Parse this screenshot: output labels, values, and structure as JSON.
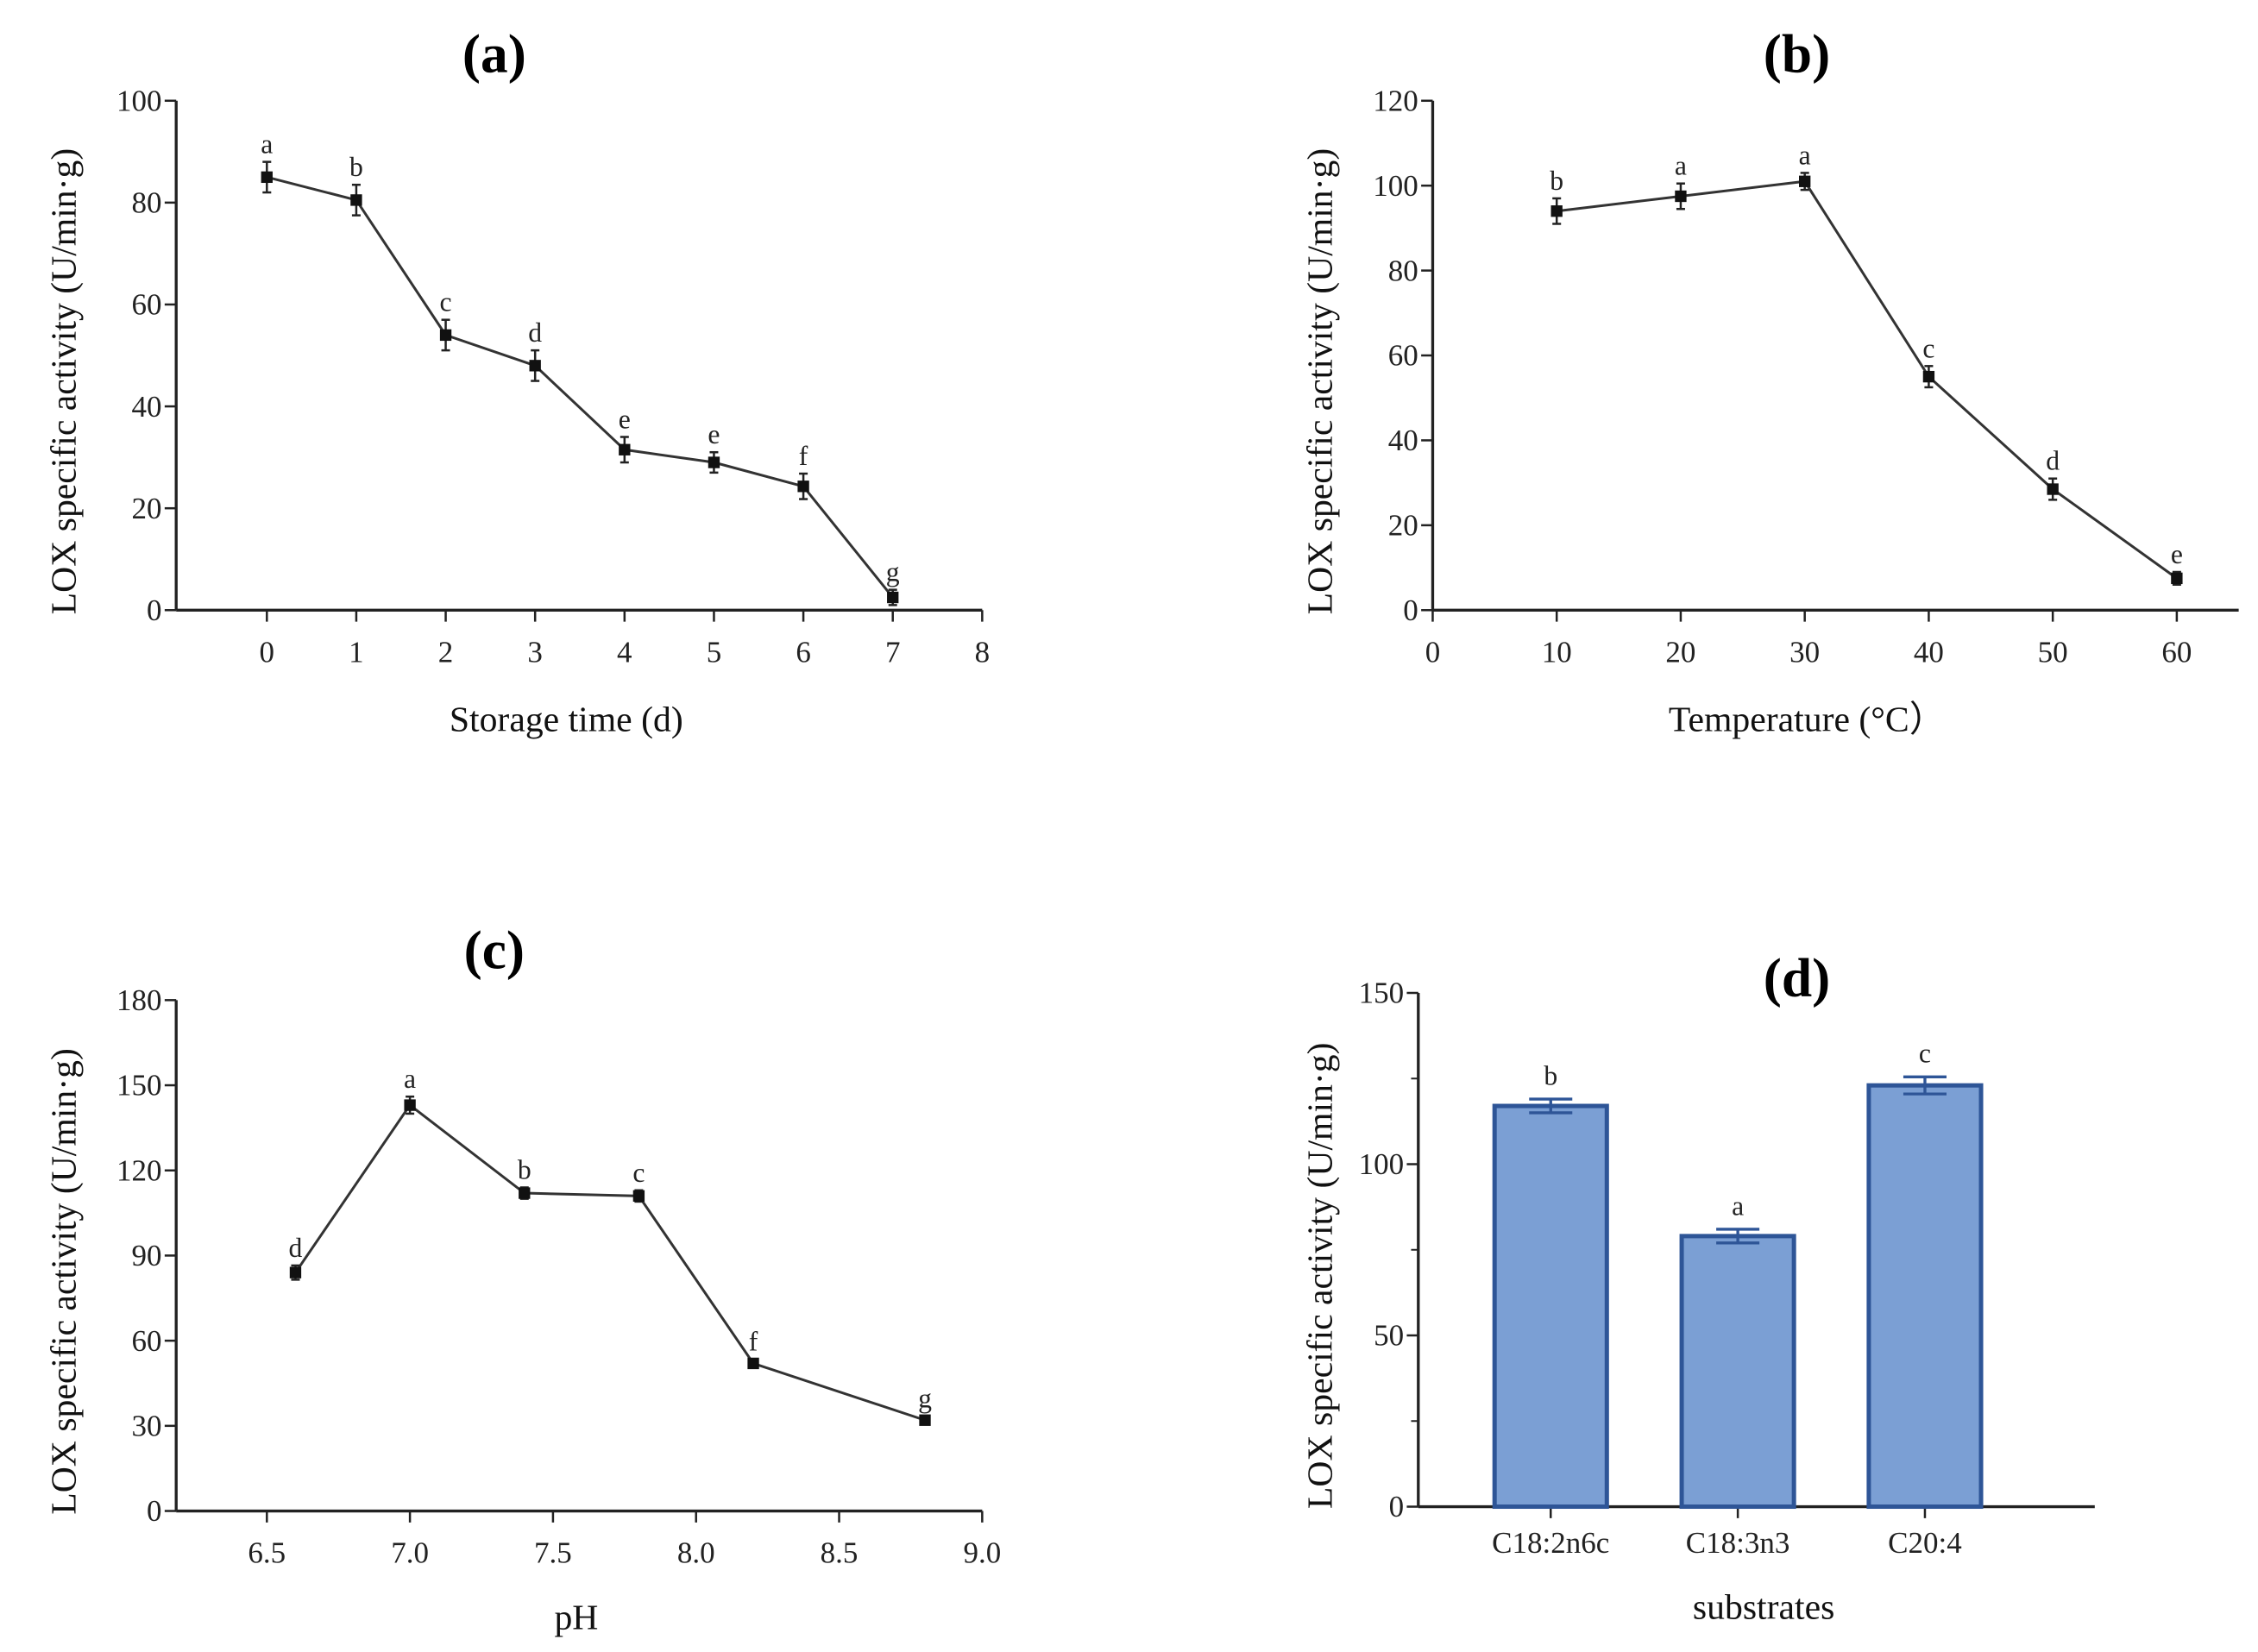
{
  "chart_data": [
    {
      "panel": "(a)",
      "type": "line",
      "xlabel": "Storage time (d)",
      "ylabel": "LOX specific activity (U/min·g)",
      "xlim": [
        -1.5,
        8
      ],
      "ylim": [
        0,
        100
      ],
      "xticks": [
        0,
        1,
        2,
        3,
        4,
        5,
        6,
        7,
        8
      ],
      "yticks": [
        0,
        20,
        40,
        60,
        80,
        100
      ],
      "x": [
        0,
        1,
        2,
        3,
        4,
        5,
        6,
        7
      ],
      "values": [
        85,
        80.5,
        54,
        48,
        31.5,
        29,
        24.3,
        2.5
      ],
      "errors": [
        3,
        3,
        3,
        3,
        2.5,
        2,
        2.5,
        1.5
      ],
      "letters": [
        "a",
        "b",
        "c",
        "d",
        "e",
        "e",
        "f",
        "g"
      ]
    },
    {
      "panel": "(b)",
      "type": "line",
      "xlabel": "Temperature (°C）",
      "ylabel": "LOX specific activity (U/min·g)",
      "xlim": [
        0,
        62
      ],
      "ylim": [
        0,
        120
      ],
      "xticks": [
        0,
        10,
        20,
        30,
        40,
        50,
        60
      ],
      "yticks": [
        0,
        20,
        40,
        60,
        80,
        100,
        120
      ],
      "x": [
        10,
        20,
        30,
        40,
        50,
        60
      ],
      "values": [
        94,
        97.5,
        101,
        55,
        28.5,
        7.5
      ],
      "errors": [
        3,
        3,
        2,
        2.5,
        2.5,
        1.5
      ],
      "letters": [
        "b",
        "a",
        "a",
        "c",
        "d",
        "e"
      ]
    },
    {
      "panel": "(c)",
      "type": "line",
      "xlabel": "pH",
      "ylabel": "LOX specific activity (U/min·g)",
      "xlim": [
        6.2,
        9.0
      ],
      "ylim": [
        0,
        180
      ],
      "xticks": [
        "6.5",
        "7.0",
        "7.5",
        "8.0",
        "8.5",
        "9.0"
      ],
      "yticks": [
        0,
        30,
        60,
        90,
        120,
        150,
        180
      ],
      "x": [
        6.6,
        7.0,
        7.4,
        7.8,
        8.2,
        8.8
      ],
      "values": [
        84,
        143,
        112,
        111,
        52,
        32
      ],
      "errors": [
        2.5,
        3,
        2,
        2,
        1.5,
        1.5
      ],
      "letters": [
        "d",
        "a",
        "b",
        "c",
        "f",
        "g"
      ]
    },
    {
      "panel": "(d)",
      "type": "bar",
      "xlabel": "substrates",
      "ylabel": "LOX specific activity (U/min·g)",
      "ylim": [
        0,
        150
      ],
      "yticks": [
        0,
        50,
        100,
        150
      ],
      "categories": [
        "C18:2n6c",
        "C18:3n3",
        "C20:4"
      ],
      "values": [
        117,
        79,
        123
      ],
      "errors": [
        2,
        2,
        2.5
      ],
      "letters": [
        "b",
        "a",
        "c"
      ],
      "bar_color": "#7b9fd4",
      "bar_edge": "#2e5597"
    }
  ]
}
